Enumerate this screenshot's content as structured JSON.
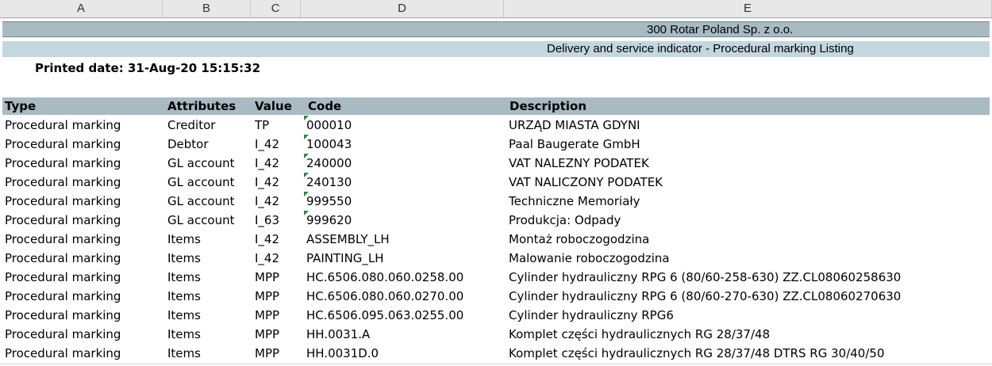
{
  "columns": [
    "A",
    "B",
    "C",
    "D",
    "E"
  ],
  "header": {
    "company": "300  Rotar Poland Sp. z o.o.",
    "report_title": "Delivery and service indicator - Procedural marking Listing",
    "printed": "Printed date: 31-Aug-20 15:15:32"
  },
  "table": {
    "headers": {
      "type": "Type",
      "attributes": "Attributes",
      "value": "Value",
      "code": "Code",
      "description": "Description"
    },
    "rows": [
      {
        "type": "Procedural marking",
        "attributes": "Creditor",
        "value": "TP",
        "code": "000010",
        "description": "URZĄD MIASTA GDYNI",
        "text_number": true
      },
      {
        "type": "Procedural marking",
        "attributes": "Debtor",
        "value": "I_42",
        "code": "100043",
        "description": "Paal Baugerate GmbH",
        "text_number": true
      },
      {
        "type": "Procedural marking",
        "attributes": "GL account",
        "value": "I_42",
        "code": "240000",
        "description": "VAT NALEZNY PODATEK",
        "text_number": true
      },
      {
        "type": "Procedural marking",
        "attributes": "GL account",
        "value": "I_42",
        "code": "240130",
        "description": "VAT NALICZONY PODATEK",
        "text_number": true
      },
      {
        "type": "Procedural marking",
        "attributes": "GL account",
        "value": "I_42",
        "code": "999550",
        "description": "Techniczne Memoriały",
        "text_number": true
      },
      {
        "type": "Procedural marking",
        "attributes": "GL account",
        "value": "I_63",
        "code": "999620",
        "description": "Produkcja: Odpady",
        "text_number": true
      },
      {
        "type": "Procedural marking",
        "attributes": "Items",
        "value": "I_42",
        "code": "ASSEMBLY_LH",
        "description": "Montaż roboczogodzina",
        "text_number": false
      },
      {
        "type": "Procedural marking",
        "attributes": "Items",
        "value": "I_42",
        "code": "PAINTING_LH",
        "description": "Malowanie roboczogodzina",
        "text_number": false
      },
      {
        "type": "Procedural marking",
        "attributes": "Items",
        "value": "MPP",
        "code": "HC.6506.080.060.0258.00",
        "description": "Cylinder hydrauliczny RPG 6 (80/60-258-630) ZZ.CL08060258630",
        "text_number": false
      },
      {
        "type": "Procedural marking",
        "attributes": "Items",
        "value": "MPP",
        "code": "HC.6506.080.060.0270.00",
        "description": "Cylinder hydrauliczny RPG 6 (80/60-270-630) ZZ.CL08060270630",
        "text_number": false
      },
      {
        "type": "Procedural marking",
        "attributes": "Items",
        "value": "MPP",
        "code": "HC.6506.095.063.0255.00",
        "description": "Cylinder hydrauliczny RPG6",
        "text_number": false
      },
      {
        "type": "Procedural marking",
        "attributes": "Items",
        "value": "MPP",
        "code": "HH.0031.A",
        "description": "Komplet części hydraulicznych RG 28/37/48",
        "text_number": false
      },
      {
        "type": "Procedural marking",
        "attributes": "Items",
        "value": "MPP",
        "code": "HH.0031D.0",
        "description": "Komplet części hydraulicznych RG 28/37/48 DTRS RG 30/40/50",
        "text_number": false
      }
    ]
  },
  "colors": {
    "band_dark": "#a8bbc3",
    "band_light": "#c3d7df",
    "text_number_flag": "#1f8f2f"
  }
}
